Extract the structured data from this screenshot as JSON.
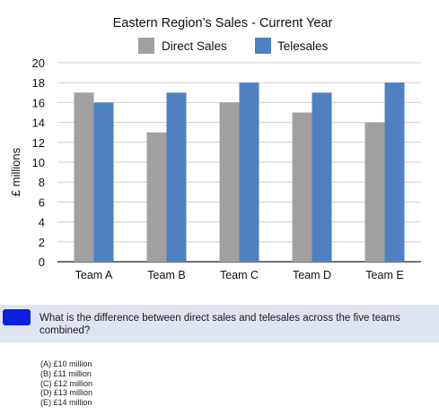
{
  "chart_data": {
    "type": "bar",
    "title": "Eastern Region’s Sales - Current Year",
    "ylabel": "£ millions",
    "xlabel": "",
    "categories": [
      "Team A",
      "Team B",
      "Team C",
      "Team D",
      "Team E"
    ],
    "series": [
      {
        "name": "Direct Sales",
        "values": [
          17,
          13,
          16,
          15,
          14
        ],
        "color": "#a0a0a0"
      },
      {
        "name": "Telesales",
        "values": [
          16,
          17,
          18,
          17,
          18
        ],
        "color": "#4f81c2"
      }
    ],
    "ylim": [
      0,
      20
    ],
    "yticks": [
      "0",
      "2",
      "4",
      "6",
      "8",
      "10",
      "12",
      "14",
      "16",
      "18",
      "20"
    ],
    "grid": true,
    "legend_position": "top"
  },
  "question": {
    "text": "What is the difference between direct sales and telesales across the five teams combined?",
    "options": [
      "(A) £10 million",
      "(B) £11 million",
      "(C) £12 million",
      "(D) £13 million",
      "(E) £14 million"
    ]
  }
}
